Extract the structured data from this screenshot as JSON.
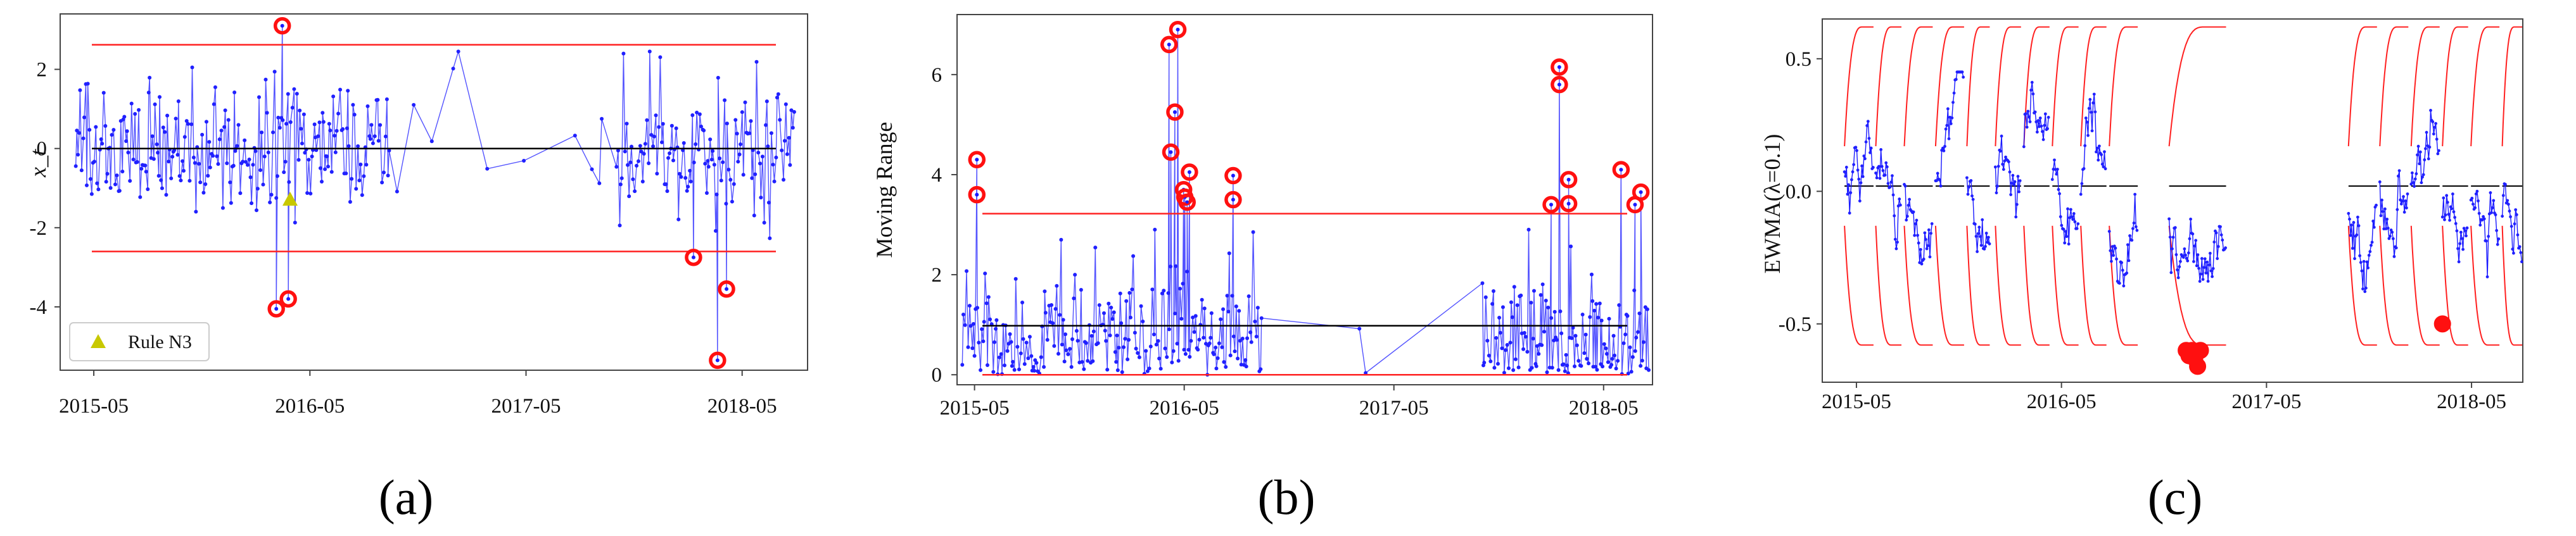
{
  "figure": {
    "panels": [
      {
        "id": "a",
        "label": "(a)"
      },
      {
        "id": "b",
        "label": "(b)"
      },
      {
        "id": "c",
        "label": "(c)"
      }
    ]
  },
  "chart_data": [
    {
      "id": "a",
      "type": "line",
      "title": "",
      "xlabel": "",
      "ylabel": "x_t",
      "x_ticks": [
        "2015-05",
        "2016-05",
        "2017-05",
        "2018-05"
      ],
      "y_ticks": [
        2,
        0,
        -2,
        -4
      ],
      "ylim": [
        -5.6,
        3.4
      ],
      "x_range_months": [
        "2015-03",
        "2018-08"
      ],
      "center_line": 0,
      "ucl": 2.62,
      "lcl": -2.6,
      "series_color": "#1a1aff",
      "limit_color": "#ff2020",
      "center_color": "#000000",
      "gap": {
        "from": "2016-09",
        "to": "2017-10"
      },
      "out_of_control_points": [
        {
          "x": "2016-03-15",
          "y": 3.1
        },
        {
          "x": "2016-03-05",
          "y": -4.05
        },
        {
          "x": "2016-03-25",
          "y": -3.8
        },
        {
          "x": "2018-02-10",
          "y": -2.75
        },
        {
          "x": "2018-03-20",
          "y": -5.35
        },
        {
          "x": "2018-04-05",
          "y": -3.55
        }
      ],
      "rule_n3_points": [
        {
          "x": "2016-03-28",
          "y": -1.3
        }
      ],
      "legend": {
        "position": "lower-left",
        "items": [
          "Rule N3"
        ]
      },
      "grid": false
    },
    {
      "id": "b",
      "type": "line",
      "title": "",
      "xlabel": "",
      "ylabel": "Moving Range",
      "x_ticks": [
        "2015-05",
        "2016-05",
        "2017-05",
        "2018-05"
      ],
      "y_ticks": [
        0,
        2,
        4,
        6
      ],
      "ylim": [
        -0.2,
        7.2
      ],
      "center_line": 0.98,
      "ucl": 3.22,
      "lcl": 0,
      "series_color": "#1a1aff",
      "limit_color": "#ff2020",
      "center_color": "#000000",
      "gap": {
        "from": "2016-09",
        "to": "2017-10"
      },
      "out_of_control_points": [
        {
          "x": "2015-05-05",
          "y": 4.3
        },
        {
          "x": "2015-05-05",
          "y": 3.6
        },
        {
          "x": "2016-04-05",
          "y": 6.6
        },
        {
          "x": "2016-04-20",
          "y": 6.9
        },
        {
          "x": "2016-04-15",
          "y": 5.25
        },
        {
          "x": "2016-04-08",
          "y": 4.45
        },
        {
          "x": "2016-05-10",
          "y": 4.05
        },
        {
          "x": "2016-04-30",
          "y": 3.7
        },
        {
          "x": "2016-05-02",
          "y": 3.55
        },
        {
          "x": "2016-05-06",
          "y": 3.45
        },
        {
          "x": "2016-07-25",
          "y": 3.98
        },
        {
          "x": "2016-07-25",
          "y": 3.5
        },
        {
          "x": "2018-02-01",
          "y": 3.4
        },
        {
          "x": "2018-02-15",
          "y": 6.15
        },
        {
          "x": "2018-02-15",
          "y": 5.8
        },
        {
          "x": "2018-03-01",
          "y": 3.9
        },
        {
          "x": "2018-03-01",
          "y": 3.42
        },
        {
          "x": "2018-06-01",
          "y": 4.1
        },
        {
          "x": "2018-06-25",
          "y": 3.4
        },
        {
          "x": "2018-07-05",
          "y": 3.65
        }
      ],
      "grid": false
    },
    {
      "id": "c",
      "type": "line",
      "title": "",
      "xlabel": "",
      "ylabel": "EWMA(λ=0.1)",
      "x_ticks": [
        "2015-05",
        "2016-05",
        "2017-05",
        "2018-05"
      ],
      "y_ticks": [
        0.5,
        0.0,
        -0.5
      ],
      "ylim": [
        -0.72,
        0.65
      ],
      "center_line": 0.02,
      "limit_half_width": 0.6,
      "series_color": "#1a1aff",
      "limit_color": "#ff2020",
      "center_color": "#000000",
      "segments": [
        {
          "from": "2015-04-10",
          "to": "2015-06-01"
        },
        {
          "from": "2015-06-05",
          "to": "2015-07-20"
        },
        {
          "from": "2015-07-25",
          "to": "2015-09-15"
        },
        {
          "from": "2015-09-20",
          "to": "2015-11-10"
        },
        {
          "from": "2015-11-15",
          "to": "2015-12-25"
        },
        {
          "from": "2016-01-05",
          "to": "2016-02-20"
        },
        {
          "from": "2016-02-25",
          "to": "2016-04-10"
        },
        {
          "from": "2016-04-15",
          "to": "2016-06-01"
        },
        {
          "from": "2016-06-05",
          "to": "2016-07-20"
        },
        {
          "from": "2016-07-25",
          "to": "2016-09-15"
        },
        {
          "from": "2016-11-10",
          "to": "2017-02-20"
        },
        {
          "from": "2017-09-25",
          "to": "2017-11-15"
        },
        {
          "from": "2017-11-20",
          "to": "2018-01-10"
        },
        {
          "from": "2018-01-15",
          "to": "2018-03-05"
        },
        {
          "from": "2018-03-10",
          "to": "2018-04-25"
        },
        {
          "from": "2018-04-30",
          "to": "2018-06-20"
        },
        {
          "from": "2018-06-25",
          "to": "2018-07-30"
        }
      ],
      "out_of_control_points": [
        {
          "x": "2016-12-10",
          "y": -0.6
        },
        {
          "x": "2016-12-15",
          "y": -0.62
        },
        {
          "x": "2016-12-20",
          "y": -0.6
        },
        {
          "x": "2016-12-25",
          "y": -0.63
        },
        {
          "x": "2016-12-30",
          "y": -0.66
        },
        {
          "x": "2017-01-05",
          "y": -0.6
        },
        {
          "x": "2018-03-10",
          "y": -0.5
        }
      ],
      "grid": false
    }
  ]
}
